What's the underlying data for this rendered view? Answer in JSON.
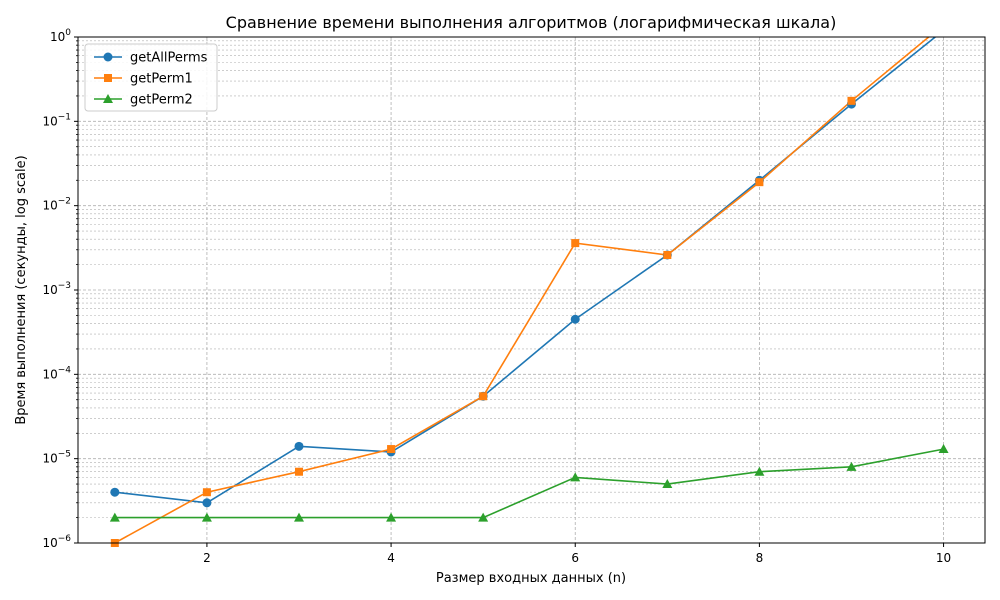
{
  "chart_data": {
    "type": "line",
    "title": "Сравнение времени выполнения алгоритмов (логарифмическая шкала)",
    "xlabel": "Размер входных данных (n)",
    "ylabel": "Время выполнения (секунды, log scale)",
    "xlim": [
      0.6,
      10.45
    ],
    "ylim": [
      1e-06,
      1
    ],
    "yscale": "log",
    "grid": true,
    "legend_position": "top-left",
    "x_ticks": [
      2,
      4,
      6,
      8,
      10
    ],
    "x_tick_labels": [
      "2",
      "4",
      "6",
      "8",
      "10"
    ],
    "y_tick_labels": [
      {
        "exp": -6,
        "label": "10",
        "sup": "−6"
      },
      {
        "exp": -5,
        "label": "10",
        "sup": "−5"
      },
      {
        "exp": -4,
        "label": "10",
        "sup": "−4"
      },
      {
        "exp": -3,
        "label": "10",
        "sup": "−3"
      },
      {
        "exp": -2,
        "label": "10",
        "sup": "−2"
      },
      {
        "exp": -1,
        "label": "10",
        "sup": "−1"
      },
      {
        "exp": 0,
        "label": "10",
        "sup": "0"
      }
    ],
    "x": [
      1,
      2,
      3,
      4,
      5,
      6,
      7,
      8,
      9,
      10
    ],
    "series": [
      {
        "name": "getAllPerms",
        "color": "#1f77b4",
        "marker": "circle",
        "values": [
          4e-06,
          3e-06,
          1.4e-05,
          1.2e-05,
          5.5e-05,
          0.00045,
          0.0026,
          0.02,
          0.16,
          1.2
        ]
      },
      {
        "name": "getPerm1",
        "color": "#ff7f0e",
        "marker": "square",
        "values": [
          1e-06,
          4e-06,
          7e-06,
          1.3e-05,
          5.5e-05,
          0.0036,
          0.0026,
          0.019,
          0.175,
          1.4
        ]
      },
      {
        "name": "getPerm2",
        "color": "#2ca02c",
        "marker": "triangle",
        "values": [
          2e-06,
          2e-06,
          2e-06,
          2e-06,
          2e-06,
          6e-06,
          5e-06,
          7e-06,
          8e-06,
          1.3e-05
        ]
      }
    ]
  }
}
